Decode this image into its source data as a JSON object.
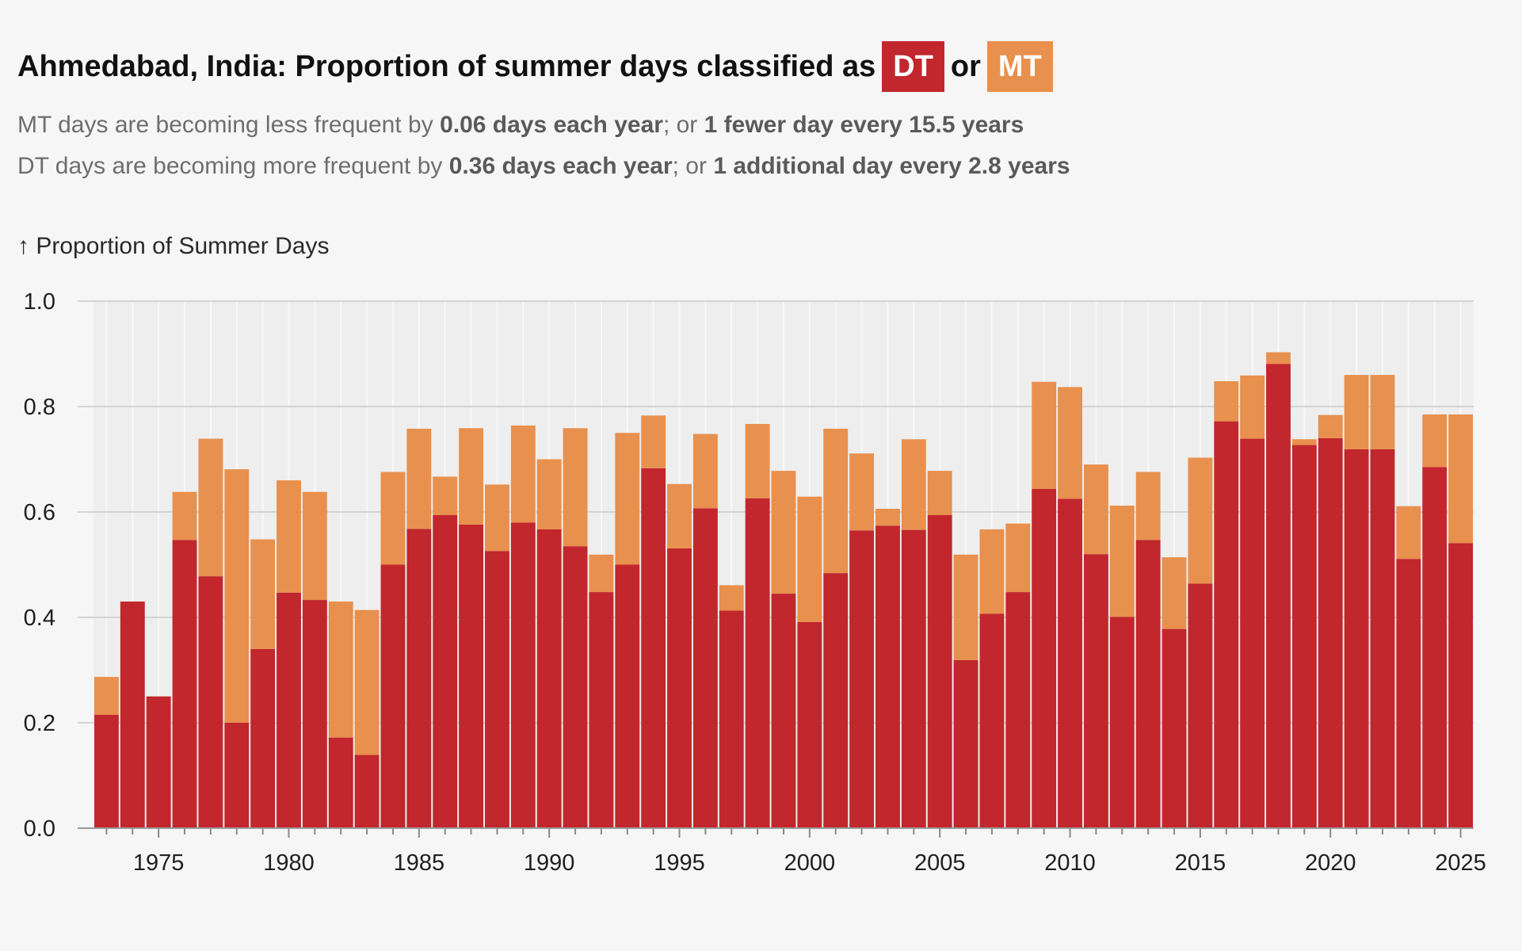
{
  "title": {
    "prefix": "Ahmedabad, India: Proportion of summer days classified as",
    "dt_label": "DT",
    "or": "or",
    "mt_label": "MT"
  },
  "subtitle": {
    "line1": {
      "pre": "MT days are becoming less frequent by",
      "bold1": "0.06 days each year",
      "mid": "; or",
      "bold2": "1 fewer day every 15.5 years"
    },
    "line2": {
      "pre": "DT days are becoming more frequent by",
      "bold1": "0.36 days each year",
      "mid": "; or",
      "bold2": "1 additional day every 2.8 years"
    }
  },
  "colors": {
    "dt": "#c1272d",
    "mt": "#e8904e",
    "plot_bg": "#eeeeee",
    "grid": "#d4d4d4",
    "page_bg": "#f6f6f6"
  },
  "chart_data": {
    "type": "bar",
    "stacked": true,
    "title": "Ahmedabad, India: Proportion of summer days classified as DT or MT",
    "ylabel": "↑ Proportion of Summer Days",
    "xlabel": "",
    "ylim": [
      0,
      1.0
    ],
    "yticks": [
      "0.0",
      "0.2",
      "0.4",
      "0.6",
      "0.8",
      "1.0"
    ],
    "xticks": [
      "1975",
      "1980",
      "1985",
      "1990",
      "1995",
      "2000",
      "2005",
      "2010",
      "2015",
      "2020",
      "2025"
    ],
    "legend": "inline in title",
    "categories": [
      1973,
      1974,
      1975,
      1976,
      1977,
      1978,
      1979,
      1980,
      1981,
      1982,
      1983,
      1984,
      1985,
      1986,
      1987,
      1988,
      1989,
      1990,
      1991,
      1992,
      1993,
      1994,
      1995,
      1996,
      1997,
      1998,
      1999,
      2000,
      2001,
      2002,
      2003,
      2004,
      2005,
      2006,
      2007,
      2008,
      2009,
      2010,
      2011,
      2012,
      2013,
      2014,
      2015,
      2016,
      2017,
      2018,
      2019,
      2020,
      2021,
      2022,
      2023,
      2024,
      2025
    ],
    "series": [
      {
        "name": "DT",
        "values": [
          0.215,
          0.43,
          0.25,
          0.547,
          0.478,
          0.2,
          0.34,
          0.447,
          0.433,
          0.172,
          0.139,
          0.5,
          0.568,
          0.594,
          0.576,
          0.526,
          0.58,
          0.567,
          0.535,
          0.448,
          0.5,
          0.683,
          0.531,
          0.607,
          0.413,
          0.626,
          0.445,
          0.391,
          0.484,
          0.565,
          0.574,
          0.566,
          0.594,
          0.319,
          0.407,
          0.448,
          0.644,
          0.625,
          0.52,
          0.401,
          0.547,
          0.378,
          0.464,
          0.772,
          0.739,
          0.881,
          0.727,
          0.74,
          0.719,
          0.719,
          0.511,
          0.685,
          0.541
        ]
      },
      {
        "name": "MT",
        "values": [
          0.072,
          0.0,
          0.0,
          0.091,
          0.261,
          0.481,
          0.208,
          0.213,
          0.205,
          0.258,
          0.275,
          0.176,
          0.19,
          0.073,
          0.183,
          0.126,
          0.184,
          0.133,
          0.224,
          0.071,
          0.25,
          0.1,
          0.122,
          0.141,
          0.048,
          0.141,
          0.233,
          0.238,
          0.274,
          0.146,
          0.032,
          0.172,
          0.084,
          0.2,
          0.16,
          0.13,
          0.203,
          0.212,
          0.17,
          0.211,
          0.129,
          0.136,
          0.239,
          0.076,
          0.12,
          0.022,
          0.011,
          0.044,
          0.141,
          0.141,
          0.1,
          0.1,
          0.244
        ]
      }
    ]
  }
}
